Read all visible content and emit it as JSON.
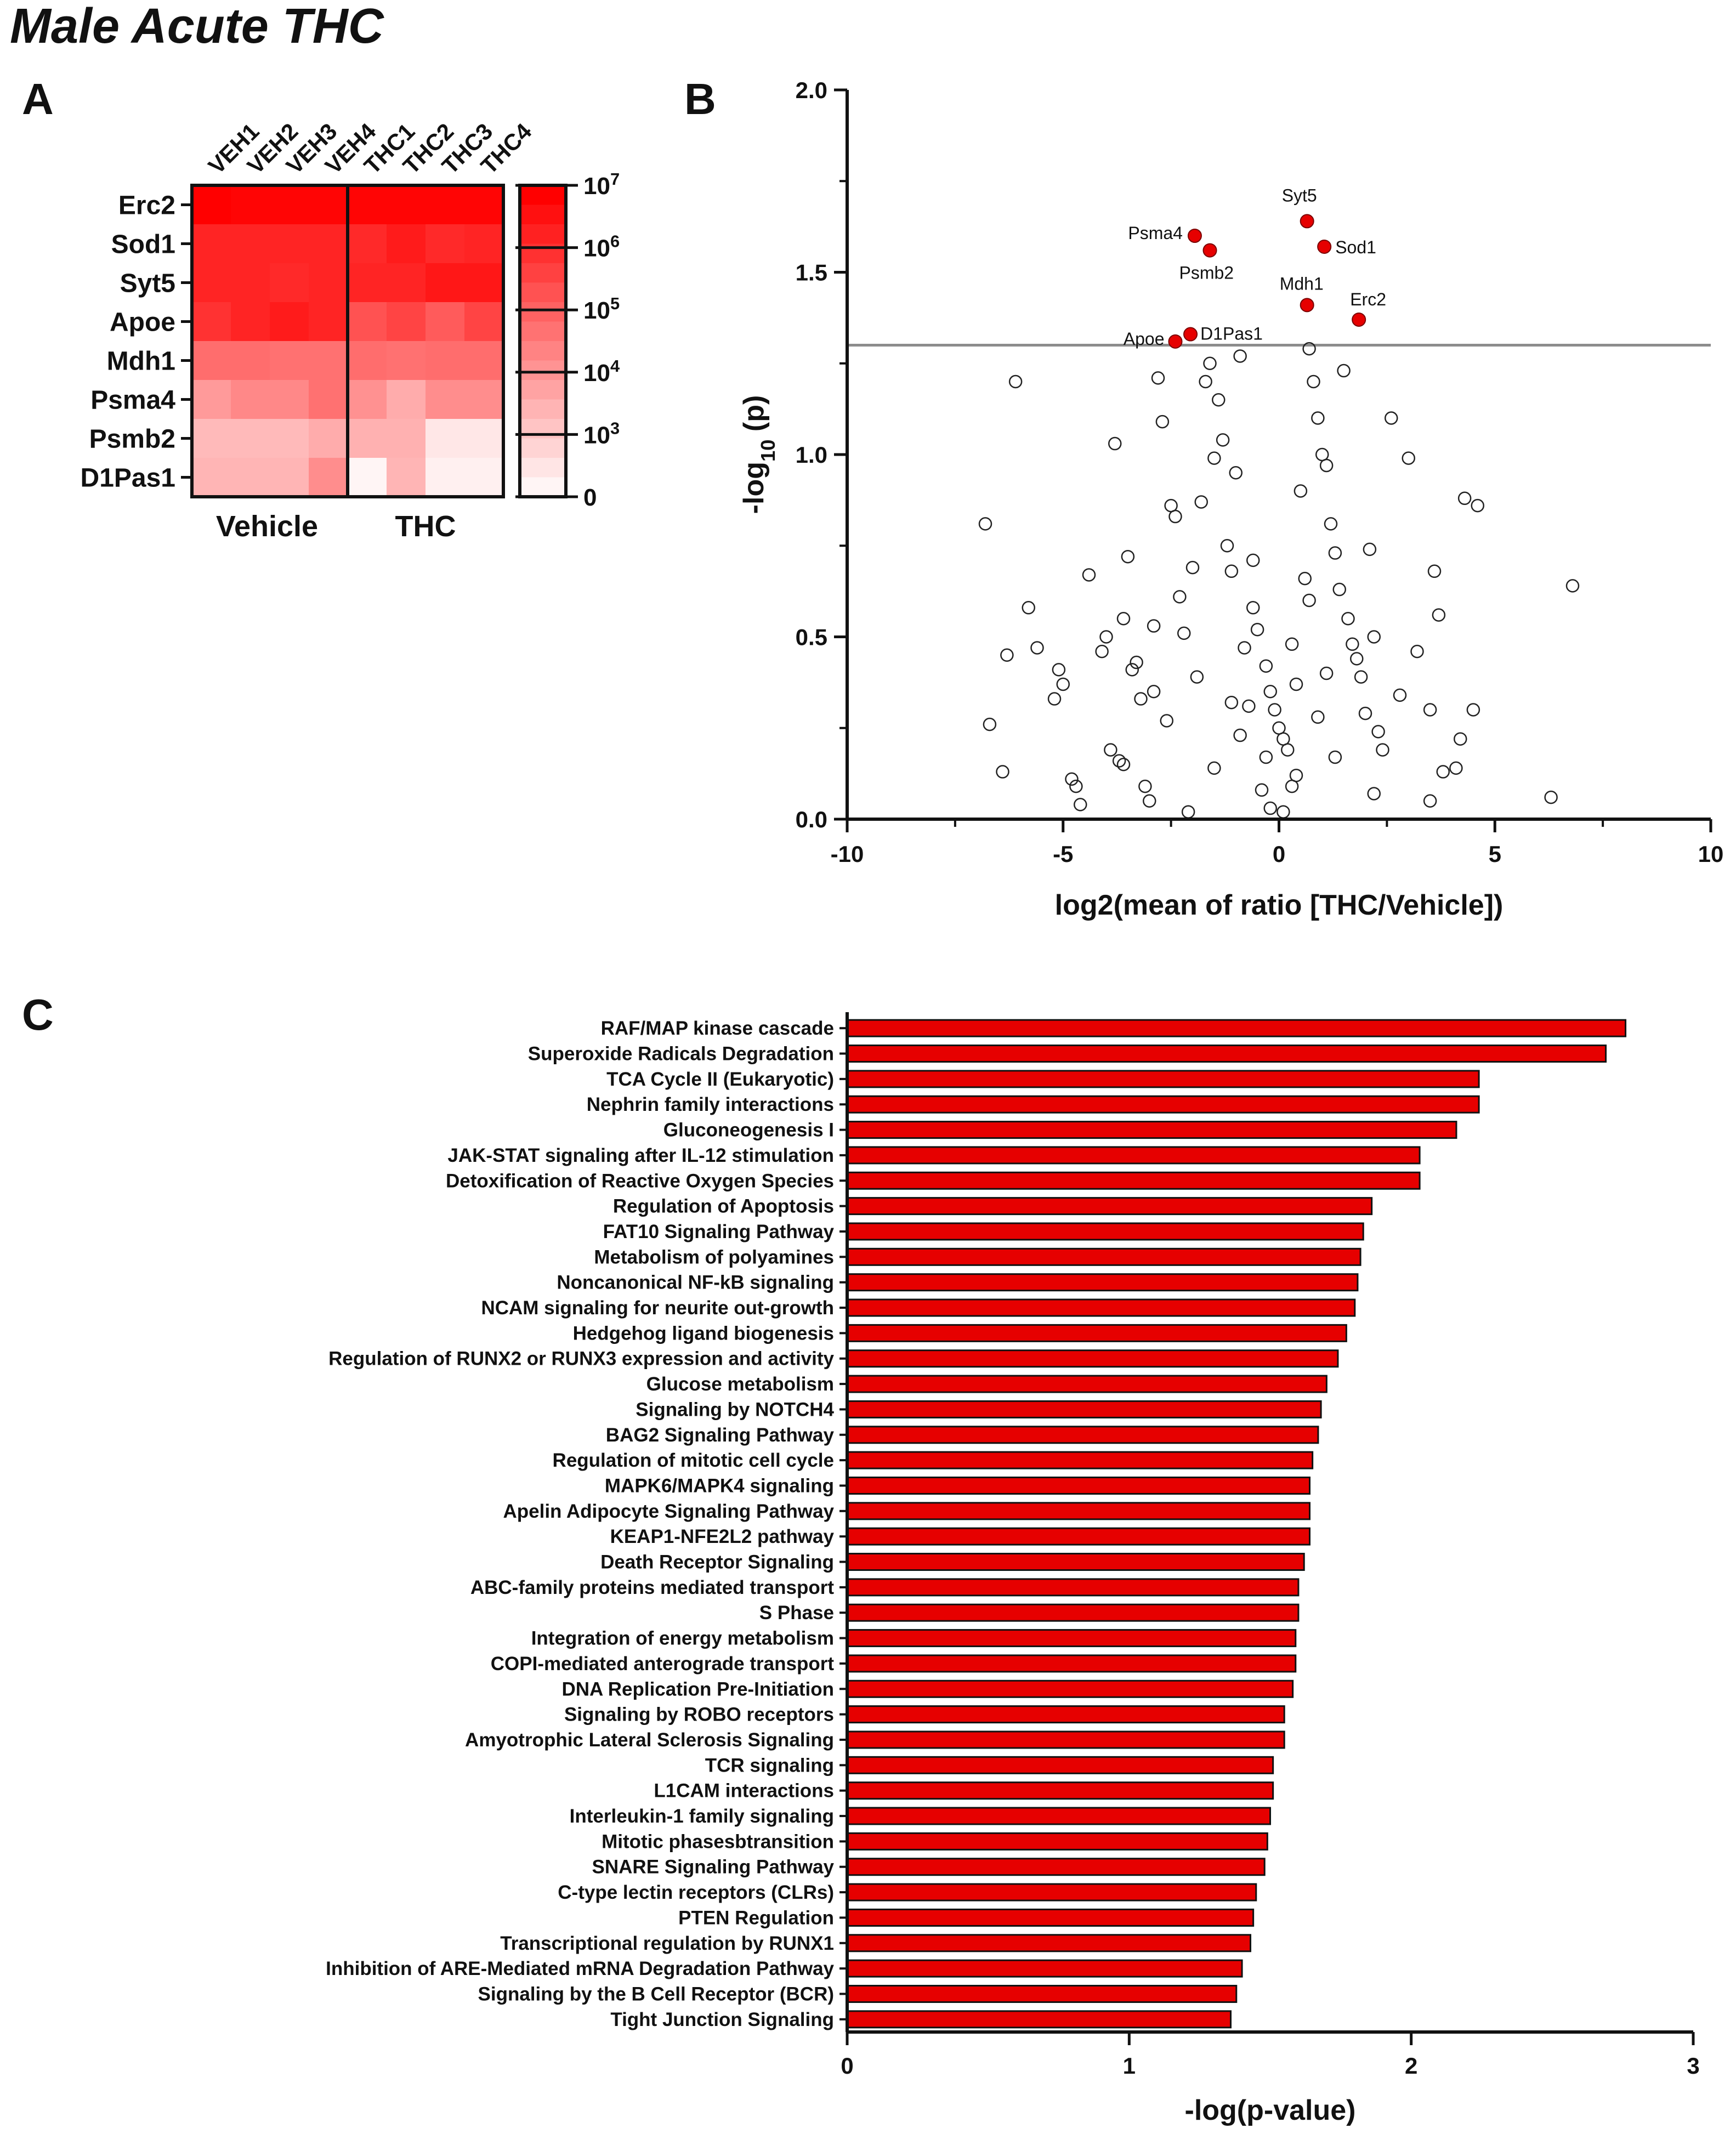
{
  "figure_title": "Male Acute THC",
  "panel_labels": {
    "a": "A",
    "b": "B",
    "c": "C"
  },
  "colors": {
    "accent_red": "#e60000",
    "heat_max": "#ff0000",
    "heat_min": "#fff5f5",
    "threshold_line": "#8c8c8c"
  },
  "chart_data": [
    {
      "type": "heatmap",
      "title": "",
      "rows": [
        "Erc2",
        "Sod1",
        "Syt5",
        "Apoe",
        "Mdh1",
        "Psma4",
        "Psmb2",
        "D1Pas1"
      ],
      "columns": [
        "VEH1",
        "VEH2",
        "VEH3",
        "VEH4",
        "THC1",
        "THC2",
        "THC3",
        "THC4"
      ],
      "groups": [
        {
          "label": "Vehicle",
          "columns": 4
        },
        {
          "label": "THC",
          "columns": 4
        }
      ],
      "log10_values": [
        [
          6.9,
          6.8,
          6.8,
          6.8,
          6.8,
          6.8,
          6.8,
          6.8
        ],
        [
          6.1,
          6.1,
          6.1,
          6.1,
          6.0,
          6.3,
          6.0,
          6.1
        ],
        [
          6.1,
          6.1,
          6.0,
          6.1,
          6.1,
          6.1,
          6.4,
          6.4
        ],
        [
          5.8,
          6.1,
          6.3,
          6.1,
          5.1,
          5.4,
          4.9,
          5.4
        ],
        [
          4.5,
          4.5,
          4.4,
          4.4,
          4.5,
          4.4,
          4.5,
          4.5
        ],
        [
          3.5,
          3.9,
          3.9,
          4.4,
          3.7,
          3.1,
          3.8,
          3.8
        ],
        [
          2.8,
          2.8,
          2.8,
          3.1,
          3.0,
          3.0,
          1.8,
          1.8
        ],
        [
          2.9,
          2.9,
          2.9,
          3.8,
          1.5,
          2.9,
          1.6,
          1.6
        ]
      ],
      "colorbar": {
        "ticks": [
          "10^7",
          "10^6",
          "10^5",
          "10^4",
          "10^3",
          "0"
        ]
      }
    },
    {
      "type": "scatter",
      "title": "",
      "xlabel": "log2(mean of ratio [THC/Vehicle])",
      "ylabel": "-log10 (p)",
      "xlim": [
        -10,
        10
      ],
      "ylim": [
        0,
        2.0
      ],
      "xticks": [
        "-10",
        "-5",
        "0",
        "5",
        "10"
      ],
      "yticks": [
        "0.0",
        "0.5",
        "1.0",
        "1.5",
        "2.0"
      ],
      "threshold_y": 1.3,
      "significant": [
        {
          "label": "Syt5",
          "x": 0.65,
          "y": 1.64
        },
        {
          "label": "Psma4",
          "x": -1.95,
          "y": 1.6
        },
        {
          "label": "Sod1",
          "x": 1.05,
          "y": 1.57
        },
        {
          "label": "Psmb2",
          "x": -1.6,
          "y": 1.56
        },
        {
          "label": "Mdh1",
          "x": 0.65,
          "y": 1.41
        },
        {
          "label": "Erc2",
          "x": 1.85,
          "y": 1.37
        },
        {
          "label": "D1Pas1",
          "x": -2.05,
          "y": 1.33
        },
        {
          "label": "Apoe",
          "x": -2.4,
          "y": 1.31
        }
      ],
      "nonsignificant_points": [
        [
          -6.1,
          1.2
        ],
        [
          -6.8,
          0.81
        ],
        [
          -6.3,
          0.45
        ],
        [
          -6.7,
          0.26
        ],
        [
          -6.4,
          0.13
        ],
        [
          -5.8,
          0.58
        ],
        [
          -5.6,
          0.47
        ],
        [
          -5.2,
          0.33
        ],
        [
          -5.0,
          0.37
        ],
        [
          -5.1,
          0.41
        ],
        [
          -4.8,
          0.11
        ],
        [
          -4.7,
          0.09
        ],
        [
          -4.6,
          0.04
        ],
        [
          -4.4,
          0.67
        ],
        [
          -4.1,
          0.46
        ],
        [
          -4.0,
          0.5
        ],
        [
          -3.9,
          0.19
        ],
        [
          -3.8,
          1.03
        ],
        [
          -3.7,
          0.16
        ],
        [
          -3.6,
          0.55
        ],
        [
          -3.6,
          0.15
        ],
        [
          -3.5,
          0.72
        ],
        [
          -3.4,
          0.41
        ],
        [
          -3.3,
          0.43
        ],
        [
          -3.2,
          0.33
        ],
        [
          -3.1,
          0.09
        ],
        [
          -3.0,
          0.05
        ],
        [
          -2.9,
          0.53
        ],
        [
          -2.9,
          0.35
        ],
        [
          -2.8,
          1.21
        ],
        [
          -2.7,
          1.09
        ],
        [
          -2.6,
          0.27
        ],
        [
          -2.5,
          0.86
        ],
        [
          -2.4,
          0.83
        ],
        [
          -2.3,
          0.61
        ],
        [
          -2.2,
          0.51
        ],
        [
          -2.0,
          0.69
        ],
        [
          -1.9,
          0.39
        ],
        [
          -1.8,
          0.87
        ],
        [
          -1.7,
          1.2
        ],
        [
          -1.6,
          1.25
        ],
        [
          -1.5,
          0.99
        ],
        [
          -1.4,
          1.15
        ],
        [
          -1.3,
          1.04
        ],
        [
          -1.2,
          0.75
        ],
        [
          -1.1,
          0.68
        ],
        [
          -1.0,
          0.95
        ],
        [
          -0.9,
          1.27
        ],
        [
          -0.8,
          0.47
        ],
        [
          -0.7,
          0.31
        ],
        [
          -0.6,
          0.71
        ],
        [
          -0.5,
          0.52
        ],
        [
          -0.3,
          0.42
        ],
        [
          -0.2,
          0.35
        ],
        [
          -0.1,
          0.3
        ],
        [
          0.0,
          0.25
        ],
        [
          0.1,
          0.22
        ],
        [
          0.2,
          0.19
        ],
        [
          0.3,
          0.48
        ],
        [
          0.4,
          0.37
        ],
        [
          0.5,
          0.9
        ],
        [
          0.6,
          0.66
        ],
        [
          0.7,
          1.29
        ],
        [
          0.8,
          1.2
        ],
        [
          0.9,
          1.1
        ],
        [
          1.0,
          1.0
        ],
        [
          1.1,
          0.97
        ],
        [
          1.2,
          0.81
        ],
        [
          1.3,
          0.73
        ],
        [
          1.4,
          0.63
        ],
        [
          1.5,
          1.23
        ],
        [
          1.6,
          0.55
        ],
        [
          1.7,
          0.48
        ],
        [
          1.8,
          0.44
        ],
        [
          1.9,
          0.39
        ],
        [
          2.0,
          0.29
        ],
        [
          2.1,
          0.74
        ],
        [
          2.2,
          0.5
        ],
        [
          2.3,
          0.24
        ],
        [
          2.4,
          0.19
        ],
        [
          2.6,
          1.1
        ],
        [
          2.8,
          0.34
        ],
        [
          3.0,
          0.99
        ],
        [
          3.2,
          0.46
        ],
        [
          3.5,
          0.3
        ],
        [
          3.5,
          0.05
        ],
        [
          3.6,
          0.68
        ],
        [
          3.7,
          0.56
        ],
        [
          3.8,
          0.13
        ],
        [
          4.1,
          0.14
        ],
        [
          4.2,
          0.22
        ],
        [
          4.3,
          0.88
        ],
        [
          4.5,
          0.3
        ],
        [
          4.6,
          0.86
        ],
        [
          6.3,
          0.06
        ],
        [
          6.8,
          0.64
        ],
        [
          -0.4,
          0.08
        ],
        [
          0.4,
          0.12
        ],
        [
          -0.2,
          0.03
        ],
        [
          0.1,
          0.02
        ],
        [
          -1.5,
          0.14
        ],
        [
          1.3,
          0.17
        ],
        [
          -2.1,
          0.02
        ],
        [
          2.2,
          0.07
        ],
        [
          -0.9,
          0.23
        ],
        [
          0.9,
          0.28
        ],
        [
          -1.1,
          0.32
        ],
        [
          1.1,
          0.4
        ],
        [
          -0.6,
          0.58
        ],
        [
          0.7,
          0.6
        ],
        [
          -0.3,
          0.17
        ],
        [
          0.3,
          0.09
        ]
      ]
    },
    {
      "type": "bar",
      "orientation": "horizontal",
      "title": "",
      "xlabel": "-log(p-value)",
      "xlim": [
        0,
        3
      ],
      "xticks": [
        "0",
        "1",
        "2",
        "3"
      ],
      "categories": [
        "RAF/MAP kinase cascade",
        "Superoxide Radicals Degradation",
        "TCA Cycle II (Eukaryotic)",
        "Nephrin family interactions",
        "Gluconeogenesis I",
        "JAK-STAT signaling after IL-12 stimulation",
        "Detoxification of Reactive Oxygen Species",
        "Regulation of Apoptosis",
        "FAT10 Signaling Pathway",
        "Metabolism of polyamines",
        "Noncanonical NF-kB signaling",
        "NCAM signaling for neurite out-growth",
        "Hedgehog ligand biogenesis",
        "Regulation of RUNX2 or RUNX3 expression and activity",
        "Glucose metabolism",
        "Signaling by NOTCH4",
        "BAG2 Signaling Pathway",
        "Regulation of mitotic cell cycle",
        "MAPK6/MAPK4 signaling",
        "Apelin Adipocyte Signaling Pathway",
        "KEAP1-NFE2L2 pathway",
        "Death Receptor Signaling",
        "ABC-family proteins mediated transport",
        "S Phase",
        "Integration of energy metabolism",
        "COPI-mediated anterograde transport",
        "DNA Replication Pre-Initiation",
        "Signaling by ROBO receptors",
        "Amyotrophic Lateral Sclerosis Signaling",
        "TCR signaling",
        "L1CAM interactions",
        "Interleukin-1 family signaling",
        "Mitotic phasesbtransition",
        "SNARE Signaling Pathway",
        "C-type lectin receptors (CLRs)",
        "PTEN Regulation",
        "Transcriptional regulation by RUNX1",
        "Inhibition of ARE-Mediated mRNA Degradation Pathway",
        "Signaling by the B Cell Receptor (BCR)",
        "Tight Junction Signaling"
      ],
      "values": [
        2.76,
        2.69,
        2.24,
        2.24,
        2.16,
        2.03,
        2.03,
        1.86,
        1.83,
        1.82,
        1.81,
        1.8,
        1.77,
        1.74,
        1.7,
        1.68,
        1.67,
        1.65,
        1.64,
        1.64,
        1.64,
        1.62,
        1.6,
        1.6,
        1.59,
        1.59,
        1.58,
        1.55,
        1.55,
        1.51,
        1.51,
        1.5,
        1.49,
        1.48,
        1.45,
        1.44,
        1.43,
        1.4,
        1.38,
        1.36
      ]
    }
  ]
}
